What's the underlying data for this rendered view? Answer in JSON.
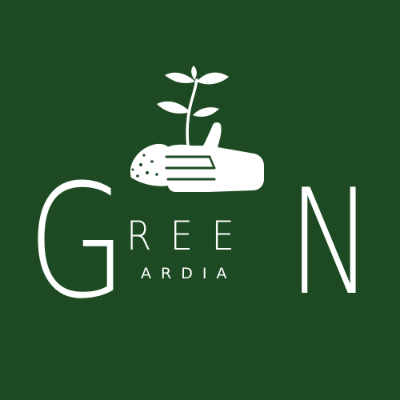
{
  "brand": {
    "mark_icon": "hand-planting-seedling-icon",
    "letter_g": "G",
    "middle_letters": "REE",
    "letter_n": "N",
    "subtitle": "ARDIA"
  },
  "colors": {
    "background": "#1d4a23",
    "foreground": "#ffffff"
  }
}
